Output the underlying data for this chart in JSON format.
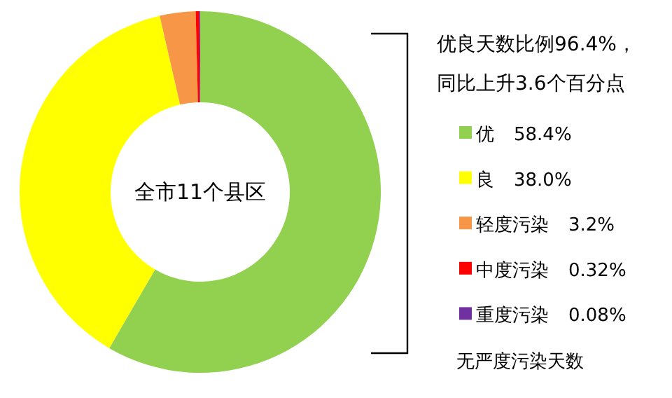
{
  "chart_data": {
    "type": "donut",
    "title": "优良天数比例96.4%，",
    "subtitle": "同比上升3.6个百分点",
    "categories": [
      "优",
      "良",
      "轻度污染",
      "中度污染",
      "重度污染"
    ],
    "values": [
      58.4,
      38.0,
      3.2,
      0.32,
      0.08
    ],
    "colors": [
      "#92d050",
      "#ffff00",
      "#f79646",
      "#ff0000",
      "#7030a0"
    ],
    "value_labels": [
      "58.4%",
      "38.0%",
      "3.2%",
      "0.32%",
      "0.08%"
    ],
    "legend": "right",
    "annotations": [
      "全市11个县区",
      "无严度污染天数"
    ]
  }
}
